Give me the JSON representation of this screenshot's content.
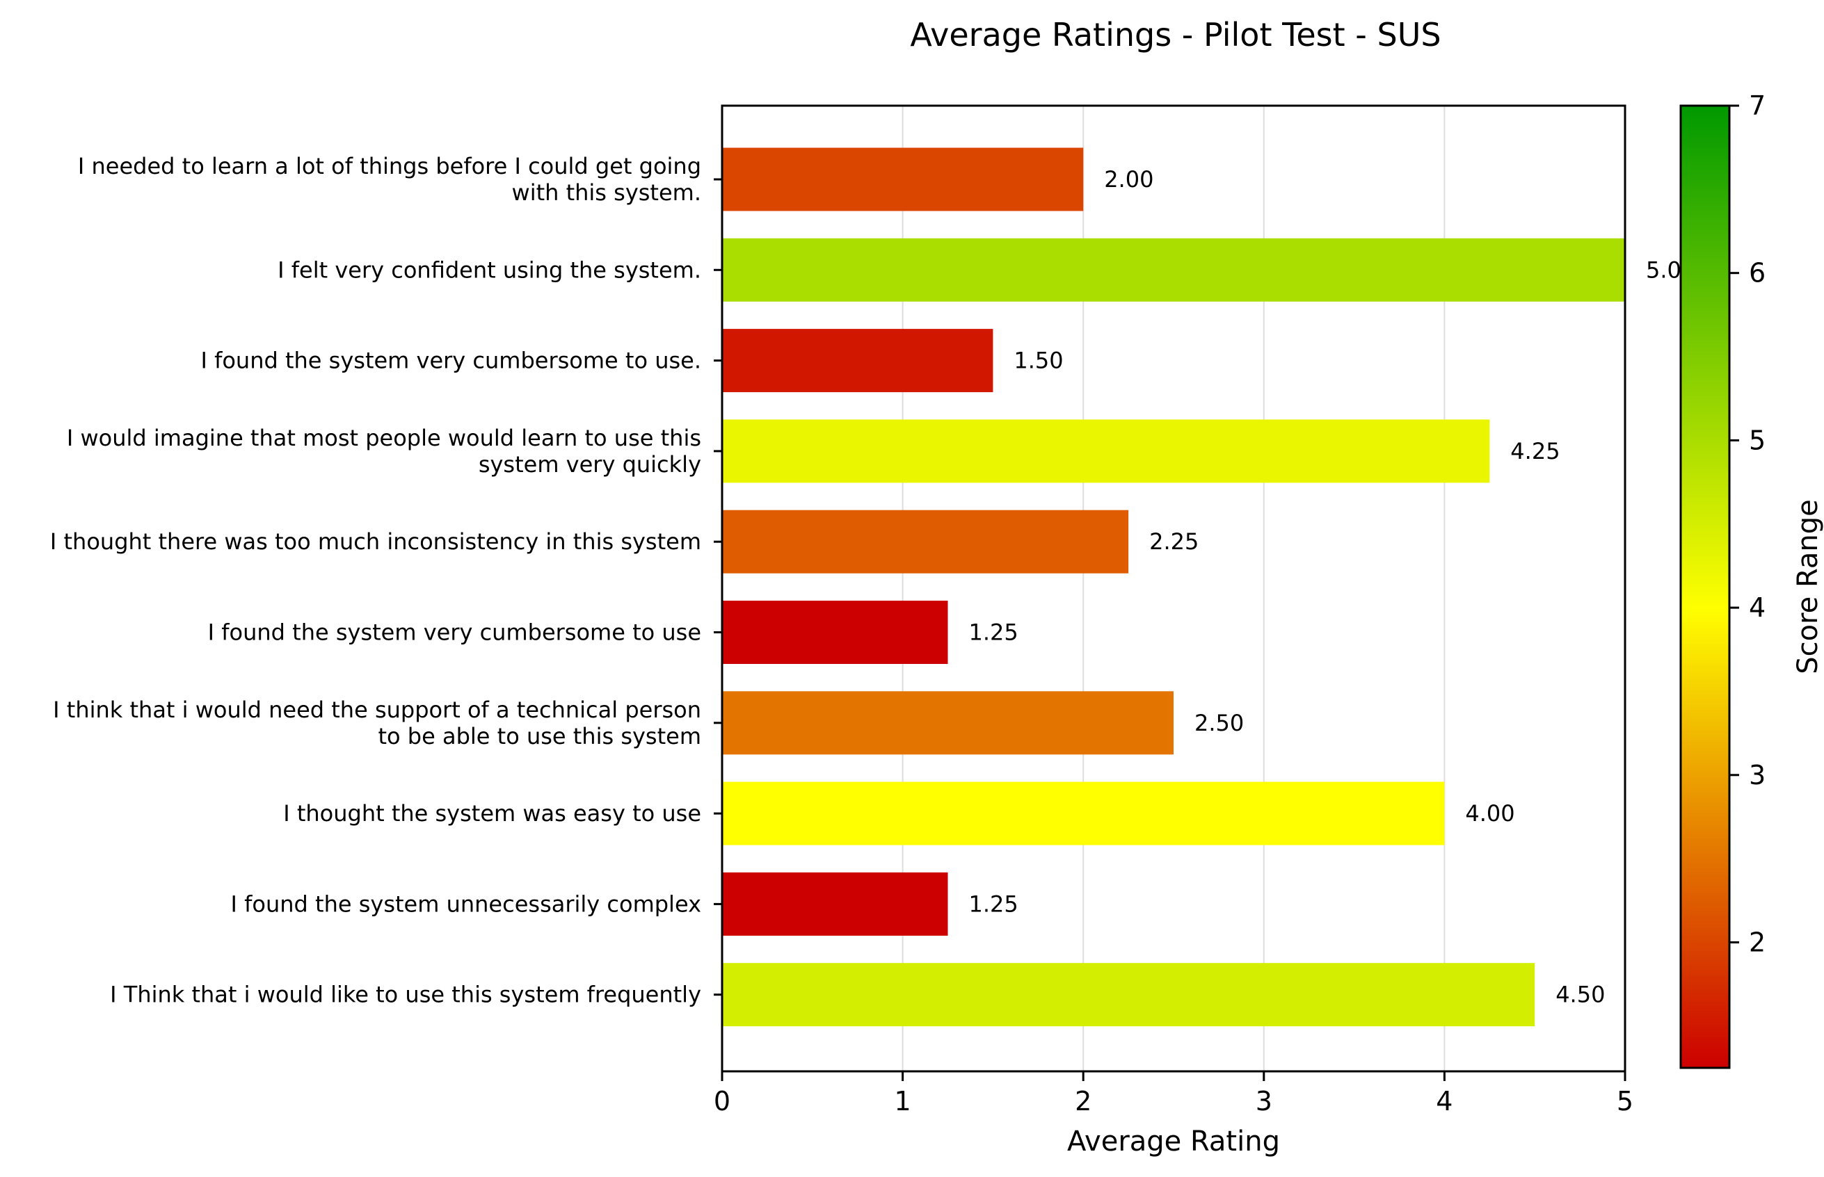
{
  "chart_data": {
    "type": "bar",
    "orientation": "horizontal",
    "title": "Average Ratings - Pilot Test - SUS",
    "xlabel": "Average Rating",
    "ylabel": "",
    "xlim": [
      0,
      5
    ],
    "x_ticks": [
      "0",
      "1",
      "2",
      "3",
      "4",
      "5"
    ],
    "grid": "vertical",
    "categories": [
      [
        "I needed to learn a lot of things before I could get going",
        "with this system."
      ],
      [
        "I felt very confident using the system."
      ],
      [
        "I found the system very cumbersome to use."
      ],
      [
        "I would imagine that most people would learn to use this",
        "system very quickly"
      ],
      [
        "I thought there was too much inconsistency in this system"
      ],
      [
        "I found the system very cumbersome to use"
      ],
      [
        "I think that i would need the support of a technical person",
        "to be able to use this system"
      ],
      [
        "I thought the system was easy to use"
      ],
      [
        "I found the system unnecessarily complex"
      ],
      [
        "I Think that i would like to use this system frequently"
      ]
    ],
    "values": [
      2.0,
      5.0,
      1.5,
      4.25,
      2.25,
      1.25,
      2.5,
      4.0,
      1.25,
      4.5
    ],
    "value_labels": [
      "2.00",
      "5.0",
      "1.50",
      "4.25",
      "2.25",
      "1.25",
      "2.50",
      "4.00",
      "1.25",
      "4.50"
    ],
    "colorbar": {
      "label": "Score Range",
      "range": [
        1.25,
        7
      ],
      "ticks": [
        "2",
        "3",
        "4",
        "5",
        "6",
        "7"
      ],
      "colors": [
        "#cc0000",
        "#ffff00",
        "#009900"
      ]
    }
  }
}
